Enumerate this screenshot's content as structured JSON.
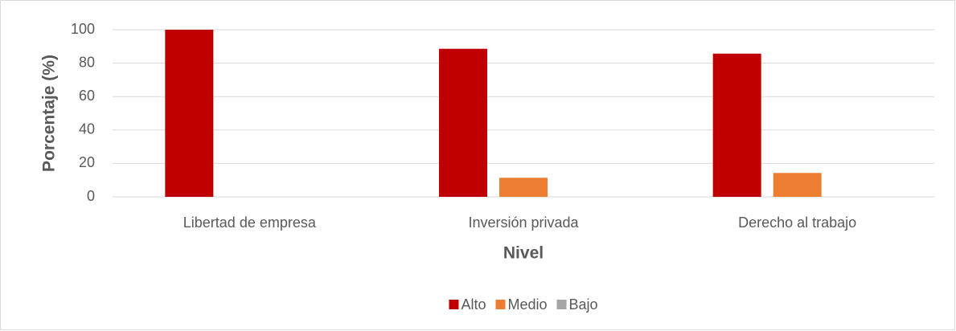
{
  "chart_data": {
    "type": "bar",
    "categories": [
      "Libertad de empresa",
      "Inversión privada",
      "Derecho al trabajo"
    ],
    "series": [
      {
        "name": "Alto",
        "color": "#c00000",
        "values": [
          100,
          88.6,
          85.7
        ]
      },
      {
        "name": "Medio",
        "color": "#ed7d31",
        "values": [
          0,
          11.4,
          14.3
        ]
      },
      {
        "name": "Bajo",
        "color": "#a5a5a5",
        "values": [
          0,
          0,
          0
        ]
      }
    ],
    "x_label": "Nivel",
    "y_label": "Porcentaje (%)",
    "ylim": [
      0,
      100
    ],
    "yticks": [
      0,
      20,
      40,
      60,
      80,
      100
    ],
    "grid": true,
    "legend": "bottom"
  }
}
